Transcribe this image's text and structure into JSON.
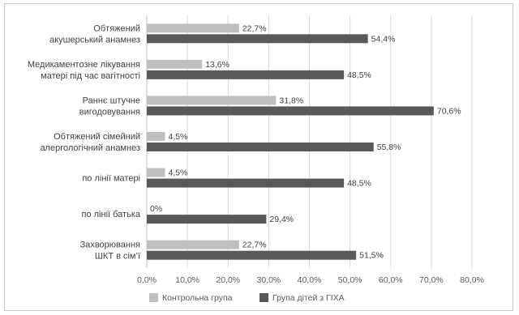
{
  "chart_data": {
    "type": "bar",
    "orientation": "horizontal",
    "categories": [
      [
        "Обтяжений",
        "акушерський анамнез"
      ],
      [
        "Медикаментозне лікування",
        "матері під час вагітності"
      ],
      [
        "Раннє штучне",
        "вигодовування"
      ],
      [
        "Обтяжений сімейний",
        "алергологічний анамнез"
      ],
      [
        "по лінії матері"
      ],
      [
        "по лінії батька"
      ],
      [
        "Захворювання",
        "ШКТ в сім’ї"
      ]
    ],
    "series": [
      {
        "name": "Контрольна група",
        "color": "#bfbfbf",
        "values": [
          22.7,
          13.6,
          31.8,
          4.5,
          4.5,
          0,
          22.7
        ],
        "labels": [
          "22,7%",
          "13,6%",
          "31,8%",
          "4,5%",
          "4,5%",
          "0%",
          "22,7%"
        ]
      },
      {
        "name": "Група дітей з ГІХА",
        "color": "#595959",
        "values": [
          54.4,
          48.5,
          70.6,
          55.8,
          48.5,
          29.4,
          51.5
        ],
        "labels": [
          "54,4%",
          "48,5%",
          "70,6%",
          "55,8%",
          "48,5%",
          "29,4%",
          "51,5%"
        ]
      }
    ],
    "xlim": [
      0,
      80
    ],
    "x_ticks": [
      0,
      10,
      20,
      30,
      40,
      50,
      60,
      70,
      80
    ],
    "x_tick_labels": [
      "0,0%",
      "10,0%",
      "20,0%",
      "30,0%",
      "40,0%",
      "50,0%",
      "60,0%",
      "70,0%",
      "80,0%"
    ],
    "grid": true,
    "legend_position": "bottom",
    "title": "",
    "xlabel": "",
    "ylabel": ""
  }
}
